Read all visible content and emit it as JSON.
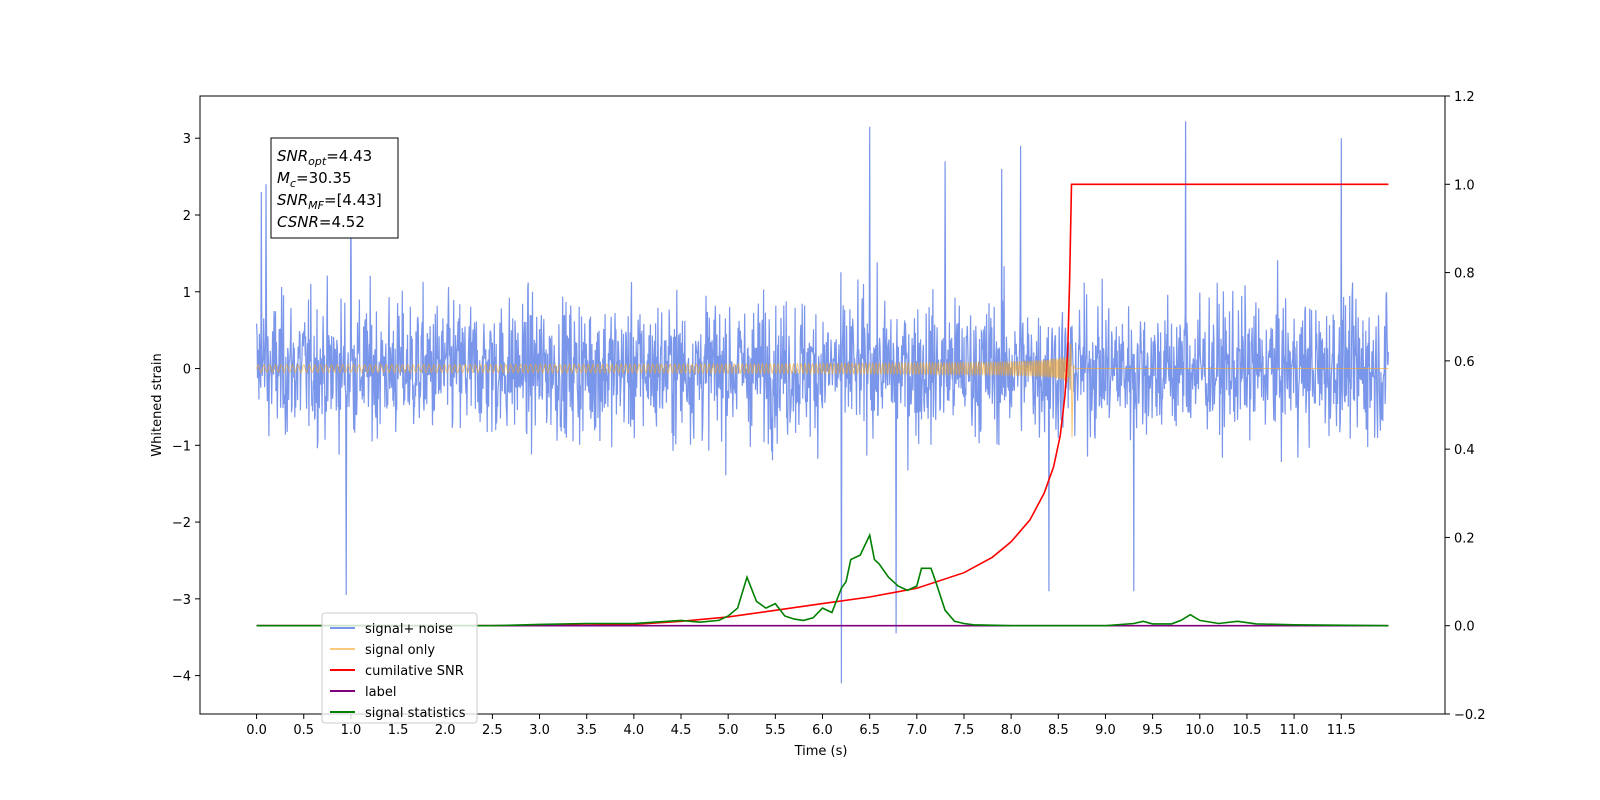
{
  "chart_data": {
    "type": "line",
    "title": "",
    "xlabel": "Time (s)",
    "ylabel": "Whitened strain",
    "xlim": [
      -0.6,
      12.6
    ],
    "ylim": [
      -4.5,
      3.55
    ],
    "y2lim": [
      -0.2,
      1.2
    ],
    "x_ticks": [
      "0.0",
      "0.5",
      "1.0",
      "1.5",
      "2.0",
      "2.5",
      "3.0",
      "3.5",
      "4.0",
      "4.5",
      "5.0",
      "5.5",
      "6.0",
      "6.5",
      "7.0",
      "7.5",
      "8.0",
      "8.5",
      "9.0",
      "9.5",
      "10.0",
      "10.5",
      "11.0",
      "11.5"
    ],
    "y_ticks": [
      "3",
      "2",
      "1",
      "0",
      "−1",
      "−2",
      "−3",
      "−4"
    ],
    "y2_ticks": [
      "1.2",
      "1.0",
      "0.8",
      "0.6",
      "0.4",
      "0.2",
      "0.0",
      "−0.2"
    ],
    "grid": false,
    "legend_position": "lower-left",
    "annotation": {
      "lines": [
        {
          "base": "SNR",
          "sub": "opt",
          "rest": "=4.43"
        },
        {
          "base": "M",
          "sub": "c",
          "rest": "=30.35"
        },
        {
          "base": "SNR",
          "sub": "MF",
          "rest": "=[4.43]"
        },
        {
          "base": "CSNR",
          "sub": "",
          "rest": "=4.52"
        }
      ]
    },
    "series": [
      {
        "name": "signal+ noise",
        "color": "#4169e1",
        "axis": "left",
        "kind": "noise",
        "x_range": [
          0.0,
          12.0
        ],
        "envelope": [
          -1.8,
          2.4
        ],
        "spikes": [
          [
            0.05,
            2.3
          ],
          [
            0.1,
            2.4
          ],
          [
            0.95,
            -2.95
          ],
          [
            1.0,
            2.5
          ],
          [
            6.2,
            -4.1
          ],
          [
            6.5,
            3.15
          ],
          [
            6.78,
            -3.45
          ],
          [
            7.3,
            2.7
          ],
          [
            7.9,
            2.6
          ],
          [
            8.1,
            2.9
          ],
          [
            8.4,
            -2.9
          ],
          [
            9.3,
            -2.9
          ],
          [
            9.85,
            3.22
          ],
          [
            11.5,
            3.0
          ]
        ]
      },
      {
        "name": "signal only",
        "color": "#f5a623",
        "axis": "left",
        "kind": "chirp",
        "merger_time": 8.63,
        "peak": [
          0.3,
          -0.9
        ]
      },
      {
        "name": "cumilative SNR",
        "color": "#ff0000",
        "axis": "right",
        "x": [
          0.0,
          3.0,
          4.0,
          4.5,
          5.0,
          5.5,
          6.0,
          6.5,
          7.0,
          7.5,
          7.8,
          8.0,
          8.2,
          8.35,
          8.45,
          8.52,
          8.57,
          8.6,
          8.62,
          8.64,
          12.0
        ],
        "y": [
          0.0,
          0.0,
          0.003,
          0.01,
          0.02,
          0.035,
          0.05,
          0.065,
          0.085,
          0.12,
          0.155,
          0.19,
          0.24,
          0.3,
          0.36,
          0.43,
          0.52,
          0.62,
          0.78,
          1.0,
          1.0
        ]
      },
      {
        "name": "label",
        "color": "#800080",
        "axis": "right",
        "x": [
          0.0,
          12.0
        ],
        "y": [
          0.0,
          0.0
        ]
      },
      {
        "name": "signal statistics",
        "color": "#008000",
        "axis": "right",
        "x": [
          0.0,
          2.5,
          3.0,
          3.5,
          4.0,
          4.5,
          4.7,
          4.9,
          5.0,
          5.1,
          5.2,
          5.3,
          5.4,
          5.5,
          5.6,
          5.7,
          5.8,
          5.9,
          6.0,
          6.1,
          6.2,
          6.25,
          6.3,
          6.4,
          6.5,
          6.55,
          6.6,
          6.7,
          6.8,
          6.9,
          7.0,
          7.05,
          7.15,
          7.2,
          7.3,
          7.4,
          7.5,
          7.6,
          8.0,
          9.0,
          9.3,
          9.4,
          9.5,
          9.7,
          9.8,
          9.9,
          10.0,
          10.2,
          10.4,
          10.6,
          11.0,
          12.0
        ],
        "y": [
          0.0,
          0.0,
          0.003,
          0.005,
          0.005,
          0.012,
          0.008,
          0.012,
          0.022,
          0.04,
          0.11,
          0.055,
          0.04,
          0.05,
          0.022,
          0.015,
          0.012,
          0.018,
          0.04,
          0.03,
          0.085,
          0.1,
          0.15,
          0.16,
          0.205,
          0.15,
          0.14,
          0.11,
          0.09,
          0.08,
          0.09,
          0.13,
          0.13,
          0.1,
          0.035,
          0.01,
          0.005,
          0.002,
          0.0,
          0.0,
          0.005,
          0.01,
          0.004,
          0.004,
          0.012,
          0.025,
          0.012,
          0.005,
          0.01,
          0.004,
          0.002,
          0.0
        ]
      }
    ]
  }
}
